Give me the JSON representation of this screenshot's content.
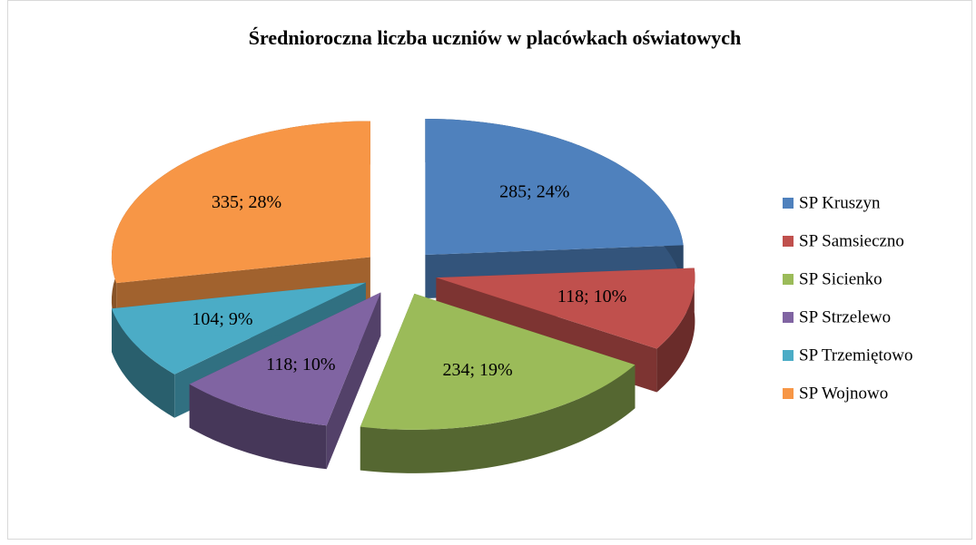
{
  "chart_data": {
    "type": "pie",
    "title": "Średnioroczna liczba uczniów w placówkach oświatowych",
    "categories": [
      "SP Kruszyn",
      "SP Samsieczno",
      "SP Sicienko",
      "SP Strzelewo",
      "SP Trzemiętowo",
      "SP Wojnowo"
    ],
    "values": [
      285,
      118,
      234,
      118,
      104,
      335
    ],
    "value_labels": [
      "285; 24%",
      "118; 10%",
      "234; 19%",
      "118; 10%",
      "104; 9%",
      "335; 28%"
    ],
    "colors": [
      "#4f81bd",
      "#c0504d",
      "#9bbb59",
      "#8064a2",
      "#4bacc6",
      "#f79646"
    ],
    "legend": "right"
  }
}
